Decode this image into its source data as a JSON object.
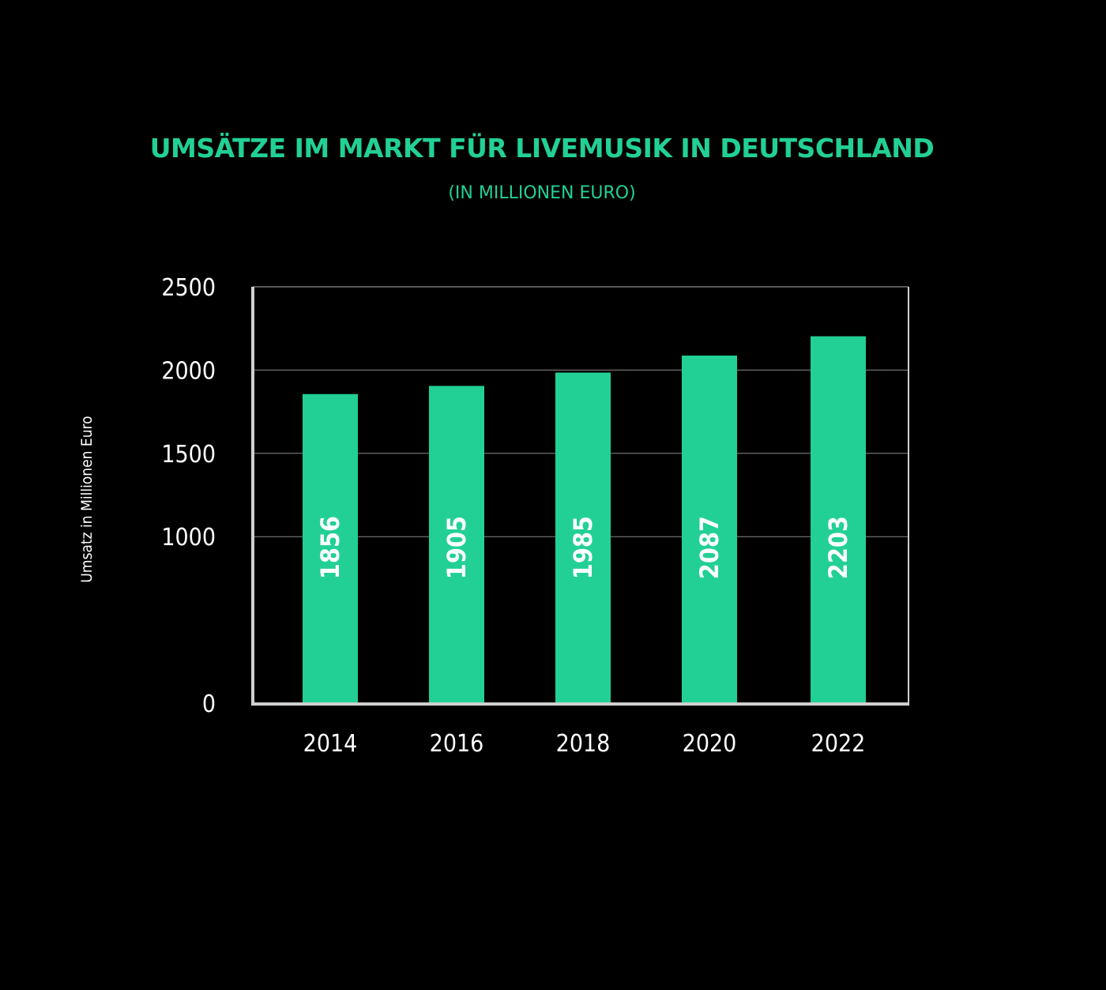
{
  "chart_data": {
    "type": "bar",
    "title": "UMSÄTZE IM MARKT FÜR LIVEMUSIK IN DEUTSCHLAND",
    "subtitle": "(IN MILLIONEN EURO)",
    "xlabel": "",
    "ylabel": "Umsatz in Millionen Euro",
    "categories": [
      "2014",
      "2016",
      "2018",
      "2020",
      "2022"
    ],
    "values": [
      1856,
      1905,
      1985,
      2087,
      2203
    ],
    "data_labels": [
      "1856",
      "1905",
      "1985",
      "2087",
      "2203"
    ],
    "ylim": [
      0,
      2500
    ],
    "yticks": [
      0,
      1000,
      1500,
      2000,
      2500
    ],
    "ytick_labels": [
      "0",
      "1000",
      "1500",
      "2000",
      "2500"
    ],
    "grid": true,
    "legend": "none",
    "colors": {
      "bar": "#22d096",
      "title": "#22d096",
      "background": "#000000",
      "axis": "#d0d0d0",
      "grid": "#8a8a8a",
      "text": "#ffffff"
    }
  }
}
